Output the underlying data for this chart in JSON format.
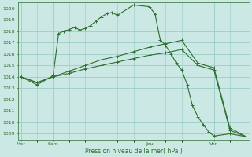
{
  "xlabel": "Pression niveau de la mer( hPa )",
  "ylim": [
    1008.5,
    1020.5
  ],
  "yticks": [
    1009,
    1010,
    1011,
    1012,
    1013,
    1014,
    1015,
    1016,
    1017,
    1018,
    1019,
    1020
  ],
  "bg_color": "#cce8e4",
  "grid_color": "#99ccc6",
  "line_color": "#2d6e2d",
  "line1_x": [
    0,
    0.5,
    1,
    1.17,
    1.33,
    1.5,
    1.67,
    1.83,
    2.0,
    2.17,
    2.33,
    2.5,
    2.67,
    2.83,
    3.0,
    3.5,
    4.0,
    4.17,
    4.33,
    4.5,
    4.67,
    4.83,
    5.0,
    5.17,
    5.33,
    5.5,
    5.67,
    5.83,
    6.0,
    6.5,
    7.0
  ],
  "line1_y": [
    1014.0,
    1013.3,
    1014.1,
    1017.8,
    1018.0,
    1018.15,
    1018.35,
    1018.1,
    1018.25,
    1018.5,
    1018.9,
    1019.25,
    1019.55,
    1019.65,
    1019.4,
    1020.3,
    1020.15,
    1019.5,
    1017.25,
    1016.75,
    1016.0,
    1015.2,
    1014.6,
    1013.3,
    1011.5,
    1010.5,
    1009.8,
    1009.2,
    1008.8,
    1009.0,
    1008.75
  ],
  "line2_x": [
    0,
    0.5,
    1,
    1.5,
    2.0,
    2.5,
    3.0,
    3.5,
    4.0,
    4.5,
    5.0,
    5.5,
    6.0,
    6.5,
    7.0
  ],
  "line2_y": [
    1014.0,
    1013.5,
    1014.0,
    1014.5,
    1015.0,
    1015.5,
    1015.8,
    1016.2,
    1016.6,
    1016.9,
    1017.2,
    1015.2,
    1014.8,
    1009.5,
    1008.75
  ],
  "line3_x": [
    0,
    0.5,
    1,
    1.5,
    2.0,
    2.5,
    3.0,
    3.5,
    4.0,
    4.5,
    5.0,
    5.5,
    6.0,
    6.5,
    7.0
  ],
  "line3_y": [
    1014.0,
    1013.5,
    1014.0,
    1014.3,
    1014.7,
    1015.0,
    1015.3,
    1015.6,
    1015.9,
    1016.1,
    1016.4,
    1015.0,
    1014.6,
    1009.3,
    1008.75
  ],
  "xtick_positions": [
    0,
    1,
    4,
    6
  ],
  "xtick_labels": [
    "Mer",
    "Sam",
    "Jeu",
    "Ven"
  ],
  "vline_positions": [
    0,
    1,
    4,
    6
  ]
}
